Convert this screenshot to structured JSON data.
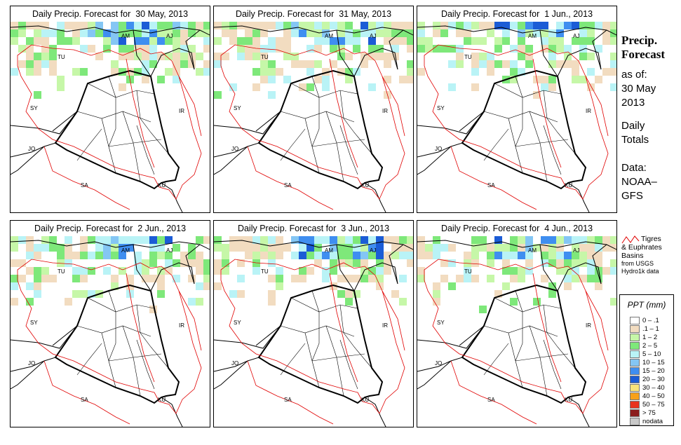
{
  "panels": [
    {
      "title": "Daily Precip. Forecast for  30 May, 2013",
      "heavy": 0.55
    },
    {
      "title": "Daily Precip. Forecast for  31 May, 2013",
      "heavy": 0.45
    },
    {
      "title": "Daily Precip. Forecast for  1 Jun., 2013",
      "heavy": 0.45
    },
    {
      "title": "Daily Precip. Forecast for  2 Jun., 2013",
      "heavy": 0.4
    },
    {
      "title": "Daily Precip. Forecast for  3 Jun., 2013",
      "heavy": 0.5
    },
    {
      "title": "Daily Precip. Forecast for  4 Jun., 2013",
      "heavy": 0.3
    }
  ],
  "map_labels": [
    "AM",
    "AJ",
    "TU",
    "SY",
    "IR",
    "JO",
    "SA",
    "KU"
  ],
  "side": {
    "title_line1": "Precip.",
    "title_line2": "Forecast",
    "asof": "as of:",
    "date_line1": "30 May",
    "date_line2": "2013",
    "daily_line1": "Daily",
    "daily_line2": "Totals",
    "data_line1": "Data:",
    "data_line2": "NOAA–",
    "data_line3": "GFS"
  },
  "basin_legend": {
    "line1": "Tigres",
    "line2": "& Euphrates",
    "line3": "Basins",
    "line4": "from USGS",
    "line5": "Hydro1k data",
    "line_color": "#e00000"
  },
  "ppt_legend": {
    "title": "PPT (mm)",
    "classes": [
      {
        "label": "0 – .1",
        "color": "#ffffff"
      },
      {
        "label": ".1 – 1",
        "color": "#f2dcc0"
      },
      {
        "label": "1 – 2",
        "color": "#c6f7a8"
      },
      {
        "label": "2 – 5",
        "color": "#7ee87a"
      },
      {
        "label": "5 – 10",
        "color": "#b9f3f6"
      },
      {
        "label": "10 – 15",
        "color": "#84c6f4"
      },
      {
        "label": "15 – 20",
        "color": "#3f8ef0"
      },
      {
        "label": "20 – 30",
        "color": "#1b5cd6"
      },
      {
        "label": "30 – 40",
        "color": "#f9e37a"
      },
      {
        "label": "40 – 50",
        "color": "#f7a11a"
      },
      {
        "label": "50 – 75",
        "color": "#e8321e"
      },
      {
        "label": "> 75",
        "color": "#8b1d1d"
      },
      {
        "label": "nodata",
        "color": "#c8c8c8"
      }
    ]
  }
}
